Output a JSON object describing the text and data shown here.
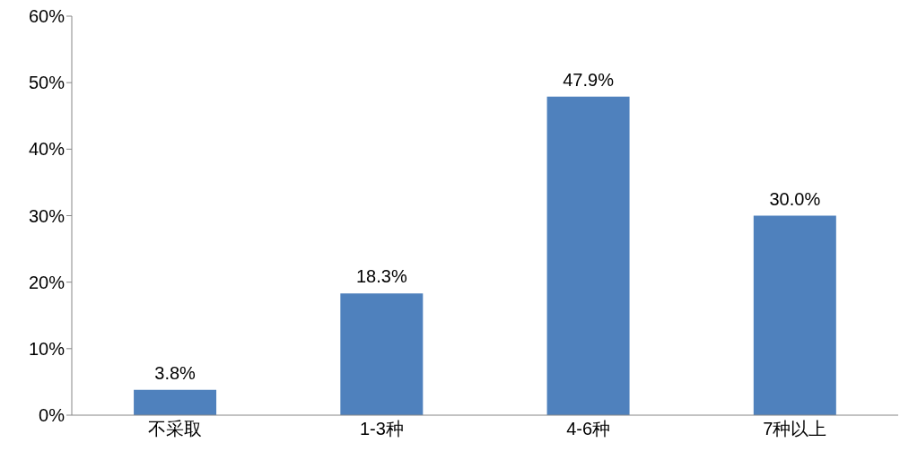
{
  "chart_data": {
    "type": "bar",
    "categories": [
      "不采取",
      "1-3种",
      "4-6种",
      "7种以上"
    ],
    "values": [
      3.8,
      18.3,
      47.9,
      30.0
    ],
    "value_labels": [
      "3.8%",
      "18.3%",
      "47.9%",
      "30.0%"
    ],
    "color": "#4f81bd",
    "ylim": [
      0,
      60
    ],
    "yticks": [
      {
        "value": 0,
        "label": "0%"
      },
      {
        "value": 10,
        "label": "10%"
      },
      {
        "value": 20,
        "label": "20%"
      },
      {
        "value": 30,
        "label": "30%"
      },
      {
        "value": 40,
        "label": "40%"
      },
      {
        "value": 50,
        "label": "50%"
      },
      {
        "value": 60,
        "label": "60%"
      }
    ],
    "grid": false,
    "legend": false
  }
}
